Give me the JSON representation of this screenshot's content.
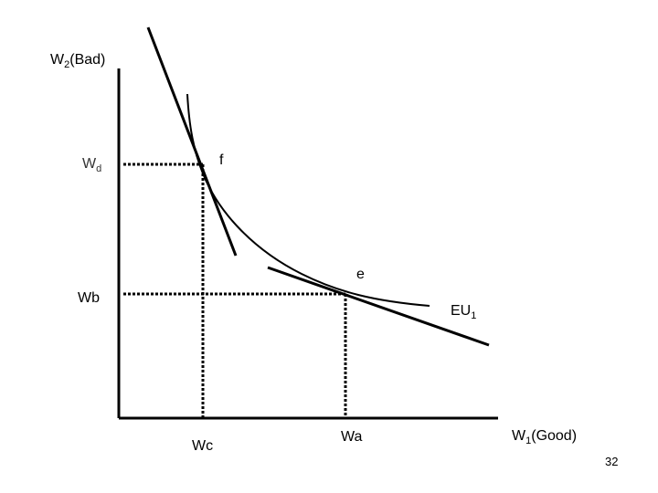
{
  "axes": {
    "y_label": {
      "main": "W",
      "sub": "2",
      "suffix": "(Bad)"
    },
    "x_label": {
      "main": "W",
      "sub": "1",
      "suffix": "(Good)"
    }
  },
  "points": {
    "f": "f",
    "e": "e"
  },
  "levels": {
    "wd": {
      "main": "W",
      "sub": "d"
    },
    "wb": "Wb",
    "wc": "Wc",
    "wa": "Wa"
  },
  "curve_label": {
    "main": "EU",
    "sub": "1"
  },
  "page_number": "32"
}
